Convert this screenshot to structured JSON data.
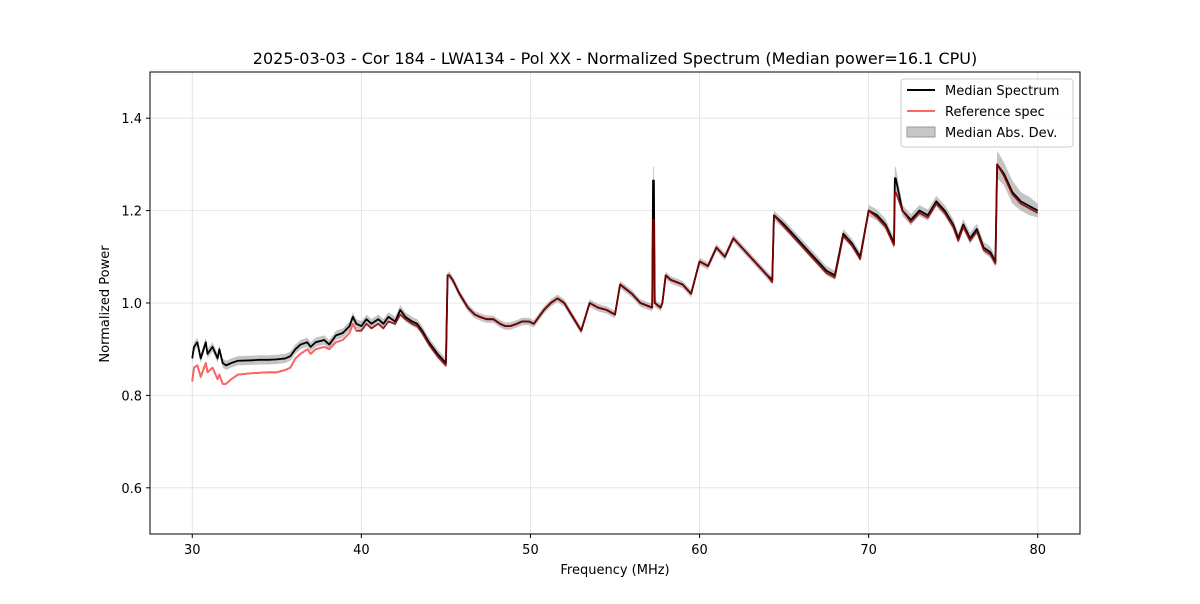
{
  "chart_data": {
    "type": "line",
    "title": "2025-03-03 - Cor 184 - LWA134 - Pol XX - Normalized Spectrum (Median power=16.1 CPU)",
    "xlabel": "Frequency (MHz)",
    "ylabel": "Normalized Power",
    "xlim": [
      27.5,
      82.5
    ],
    "ylim": [
      0.5,
      1.5
    ],
    "xticks": [
      30,
      40,
      50,
      60,
      70,
      80
    ],
    "yticks": [
      0.6,
      0.8,
      1.0,
      1.2,
      1.4
    ],
    "xtick_labels": [
      "30",
      "40",
      "50",
      "60",
      "70",
      "80"
    ],
    "ytick_labels": [
      "0.6",
      "0.8",
      "1.0",
      "1.2",
      "1.4"
    ],
    "grid": true,
    "legend_position": "top-right",
    "legend": [
      "Median Spectrum",
      "Reference spec",
      "Median Abs. Dev."
    ],
    "colors": {
      "median": "#000000",
      "reference": "#ff6666",
      "reference_overlap": "#8b0000",
      "mad_band": "#b0b0b0",
      "grid": "#e0e0e0"
    },
    "series": [
      {
        "name": "Median Spectrum",
        "x": [
          30.0,
          30.1,
          30.3,
          30.5,
          30.8,
          30.9,
          31.2,
          31.5,
          31.6,
          31.8,
          32.0,
          32.3,
          32.7,
          33.5,
          34.0,
          34.5,
          35.0,
          35.5,
          35.8,
          36.1,
          36.4,
          36.8,
          37.0,
          37.3,
          37.8,
          38.1,
          38.5,
          38.9,
          39.3,
          39.5,
          39.7,
          40.0,
          40.3,
          40.6,
          41.0,
          41.3,
          41.6,
          42.0,
          42.3,
          42.6,
          43.0,
          43.3,
          43.6,
          44.0,
          44.5,
          45.0,
          45.1,
          45.2,
          45.4,
          45.8,
          46.3,
          46.7,
          47.0,
          47.4,
          47.8,
          48.2,
          48.5,
          48.8,
          49.2,
          49.5,
          49.9,
          50.2,
          50.5,
          50.8,
          51.2,
          51.6,
          52.0,
          52.5,
          53.0,
          53.5,
          54.0,
          54.5,
          55.0,
          55.3,
          56.0,
          56.5,
          57.2,
          57.25,
          57.3,
          57.35,
          57.7,
          57.8,
          58.0,
          58.3,
          59.0,
          59.5,
          60.0,
          60.5,
          61.0,
          61.5,
          62.0,
          62.5,
          63.0,
          63.5,
          64.0,
          64.3,
          64.4,
          65.0,
          65.5,
          66.0,
          66.5,
          67.0,
          67.5,
          68.0,
          68.5,
          69.0,
          69.5,
          70.0,
          70.5,
          71.0,
          71.5,
          71.55,
          71.6,
          72.0,
          72.5,
          73.0,
          73.5,
          74.0,
          74.5,
          75.0,
          75.3,
          75.6,
          76.0,
          76.4,
          76.8,
          77.2,
          77.5,
          77.6,
          78.0,
          78.5,
          79.0,
          79.5,
          80.0
        ],
        "y": [
          0.88,
          0.905,
          0.915,
          0.88,
          0.915,
          0.89,
          0.905,
          0.88,
          0.9,
          0.87,
          0.865,
          0.87,
          0.875,
          0.876,
          0.877,
          0.877,
          0.878,
          0.88,
          0.885,
          0.9,
          0.91,
          0.915,
          0.905,
          0.915,
          0.92,
          0.91,
          0.93,
          0.935,
          0.95,
          0.97,
          0.955,
          0.95,
          0.965,
          0.955,
          0.965,
          0.955,
          0.97,
          0.96,
          0.985,
          0.97,
          0.96,
          0.955,
          0.94,
          0.915,
          0.89,
          0.87,
          1.06,
          1.06,
          1.05,
          1.02,
          0.99,
          0.975,
          0.97,
          0.965,
          0.965,
          0.955,
          0.95,
          0.95,
          0.955,
          0.96,
          0.96,
          0.955,
          0.97,
          0.985,
          1.0,
          1.01,
          1.0,
          0.97,
          0.94,
          1.0,
          0.99,
          0.985,
          0.975,
          1.04,
          1.02,
          1.0,
          0.99,
          1.265,
          1.265,
          1.0,
          0.99,
          1.0,
          1.06,
          1.05,
          1.04,
          1.02,
          1.09,
          1.08,
          1.12,
          1.1,
          1.14,
          1.12,
          1.1,
          1.08,
          1.06,
          1.05,
          1.19,
          1.17,
          1.15,
          1.13,
          1.11,
          1.09,
          1.07,
          1.06,
          1.15,
          1.13,
          1.1,
          1.2,
          1.19,
          1.17,
          1.13,
          1.27,
          1.27,
          1.2,
          1.18,
          1.2,
          1.19,
          1.22,
          1.2,
          1.17,
          1.14,
          1.17,
          1.14,
          1.16,
          1.12,
          1.11,
          1.09,
          1.3,
          1.28,
          1.24,
          1.22,
          1.21,
          1.2
        ]
      },
      {
        "name": "Reference spec",
        "x": [
          30.0,
          30.1,
          30.3,
          30.5,
          30.8,
          30.9,
          31.2,
          31.5,
          31.6,
          31.8,
          32.0,
          32.3,
          32.7,
          33.5,
          34.0,
          34.5,
          35.0,
          35.5,
          35.8,
          36.1,
          36.4,
          36.8,
          37.0,
          37.3,
          37.8,
          38.1,
          38.5,
          38.9,
          39.3,
          39.5,
          39.7,
          40.0,
          40.3,
          40.6,
          41.0,
          41.3,
          41.6,
          42.0,
          42.3,
          42.6,
          43.0,
          43.3,
          43.6,
          44.0,
          44.5,
          45.0,
          45.1,
          45.2,
          45.4,
          45.8,
          46.3,
          46.7,
          47.0,
          47.4,
          47.8,
          48.2,
          48.5,
          48.8,
          49.2,
          49.5,
          49.9,
          50.2,
          50.5,
          50.8,
          51.2,
          51.6,
          52.0,
          52.5,
          53.0,
          53.5,
          54.0,
          54.5,
          55.0,
          55.3,
          56.0,
          56.5,
          57.2,
          57.25,
          57.3,
          57.35,
          57.7,
          57.8,
          58.0,
          58.3,
          59.0,
          59.5,
          60.0,
          60.5,
          61.0,
          61.5,
          62.0,
          62.5,
          63.0,
          63.5,
          64.0,
          64.3,
          64.4,
          65.0,
          65.5,
          66.0,
          66.5,
          67.0,
          67.5,
          68.0,
          68.5,
          69.0,
          69.5,
          70.0,
          70.5,
          71.0,
          71.5,
          71.55,
          71.6,
          72.0,
          72.5,
          73.0,
          73.5,
          74.0,
          74.5,
          75.0,
          75.3,
          75.6,
          76.0,
          76.4,
          76.8,
          77.2,
          77.5,
          77.6,
          78.0,
          78.5,
          79.0,
          79.5,
          80.0
        ],
        "y": [
          0.83,
          0.86,
          0.865,
          0.84,
          0.87,
          0.85,
          0.86,
          0.835,
          0.845,
          0.825,
          0.825,
          0.835,
          0.845,
          0.848,
          0.849,
          0.85,
          0.85,
          0.855,
          0.86,
          0.88,
          0.89,
          0.9,
          0.89,
          0.9,
          0.905,
          0.9,
          0.915,
          0.92,
          0.935,
          0.955,
          0.94,
          0.94,
          0.955,
          0.945,
          0.955,
          0.945,
          0.96,
          0.955,
          0.975,
          0.965,
          0.955,
          0.95,
          0.935,
          0.91,
          0.885,
          0.865,
          1.06,
          1.06,
          1.05,
          1.02,
          0.99,
          0.975,
          0.97,
          0.965,
          0.965,
          0.955,
          0.95,
          0.95,
          0.955,
          0.96,
          0.96,
          0.955,
          0.97,
          0.985,
          1.0,
          1.01,
          1.0,
          0.97,
          0.94,
          1.0,
          0.99,
          0.985,
          0.975,
          1.04,
          1.02,
          1.0,
          0.99,
          1.18,
          1.18,
          1.0,
          0.99,
          1.0,
          1.06,
          1.05,
          1.04,
          1.02,
          1.09,
          1.08,
          1.12,
          1.1,
          1.14,
          1.12,
          1.1,
          1.08,
          1.06,
          1.045,
          1.19,
          1.165,
          1.145,
          1.125,
          1.105,
          1.085,
          1.065,
          1.055,
          1.145,
          1.125,
          1.095,
          1.2,
          1.185,
          1.165,
          1.125,
          1.24,
          1.24,
          1.2,
          1.175,
          1.195,
          1.185,
          1.215,
          1.195,
          1.165,
          1.135,
          1.165,
          1.135,
          1.155,
          1.115,
          1.105,
          1.085,
          1.3,
          1.275,
          1.235,
          1.215,
          1.205,
          1.195
        ]
      },
      {
        "name": "Median Abs. Dev.",
        "x": [
          30.0,
          30.1,
          30.3,
          30.5,
          30.8,
          30.9,
          31.2,
          31.5,
          31.6,
          31.8,
          32.0,
          32.3,
          32.7,
          33.5,
          34.0,
          34.5,
          35.0,
          35.5,
          35.8,
          36.1,
          36.4,
          36.8,
          37.0,
          37.3,
          37.8,
          38.1,
          38.5,
          38.9,
          39.3,
          39.5,
          39.7,
          40.0,
          40.3,
          40.6,
          41.0,
          41.3,
          41.6,
          42.0,
          42.3,
          42.6,
          43.0,
          43.3,
          43.6,
          44.0,
          44.5,
          45.0,
          45.1,
          45.2,
          45.4,
          45.8,
          46.3,
          46.7,
          47.0,
          47.4,
          47.8,
          48.2,
          48.5,
          48.8,
          49.2,
          49.5,
          49.9,
          50.2,
          50.5,
          50.8,
          51.2,
          51.6,
          52.0,
          52.5,
          53.0,
          53.5,
          54.0,
          54.5,
          55.0,
          55.3,
          56.0,
          56.5,
          57.2,
          57.25,
          57.3,
          57.35,
          57.7,
          57.8,
          58.0,
          58.3,
          59.0,
          59.5,
          60.0,
          60.5,
          61.0,
          61.5,
          62.0,
          62.5,
          63.0,
          63.5,
          64.0,
          64.3,
          64.4,
          65.0,
          65.5,
          66.0,
          66.5,
          67.0,
          67.5,
          68.0,
          68.5,
          69.0,
          69.5,
          70.0,
          70.5,
          71.0,
          71.5,
          71.55,
          71.6,
          72.0,
          72.5,
          73.0,
          73.5,
          74.0,
          74.5,
          75.0,
          75.3,
          75.6,
          76.0,
          76.4,
          76.8,
          77.2,
          77.5,
          77.6,
          78.0,
          78.5,
          79.0,
          79.5,
          80.0
        ],
        "upper": [
          0.89,
          0.915,
          0.925,
          0.89,
          0.925,
          0.9,
          0.915,
          0.89,
          0.91,
          0.88,
          0.875,
          0.88,
          0.885,
          0.886,
          0.887,
          0.887,
          0.888,
          0.89,
          0.895,
          0.91,
          0.92,
          0.925,
          0.915,
          0.925,
          0.93,
          0.92,
          0.94,
          0.945,
          0.96,
          0.98,
          0.965,
          0.96,
          0.975,
          0.965,
          0.975,
          0.965,
          0.98,
          0.97,
          0.995,
          0.98,
          0.97,
          0.965,
          0.95,
          0.925,
          0.9,
          0.88,
          1.068,
          1.068,
          1.058,
          1.028,
          0.998,
          0.983,
          0.978,
          0.973,
          0.973,
          0.963,
          0.958,
          0.958,
          0.963,
          0.968,
          0.968,
          0.963,
          0.978,
          0.993,
          1.008,
          1.018,
          1.008,
          0.978,
          0.948,
          1.008,
          0.998,
          0.993,
          0.983,
          1.048,
          1.028,
          1.008,
          0.998,
          1.295,
          1.295,
          1.008,
          0.998,
          1.008,
          1.068,
          1.058,
          1.048,
          1.028,
          1.098,
          1.088,
          1.128,
          1.108,
          1.148,
          1.128,
          1.108,
          1.088,
          1.068,
          1.058,
          1.2,
          1.18,
          1.16,
          1.14,
          1.12,
          1.1,
          1.08,
          1.07,
          1.16,
          1.14,
          1.11,
          1.212,
          1.202,
          1.182,
          1.142,
          1.295,
          1.295,
          1.212,
          1.192,
          1.212,
          1.202,
          1.232,
          1.212,
          1.182,
          1.152,
          1.182,
          1.152,
          1.172,
          1.132,
          1.122,
          1.102,
          1.33,
          1.305,
          1.265,
          1.24,
          1.23,
          1.215
        ],
        "lower": [
          0.87,
          0.895,
          0.905,
          0.87,
          0.905,
          0.88,
          0.895,
          0.87,
          0.89,
          0.86,
          0.855,
          0.86,
          0.865,
          0.866,
          0.867,
          0.867,
          0.868,
          0.87,
          0.875,
          0.89,
          0.9,
          0.905,
          0.895,
          0.905,
          0.91,
          0.9,
          0.92,
          0.925,
          0.94,
          0.96,
          0.945,
          0.94,
          0.955,
          0.945,
          0.955,
          0.945,
          0.96,
          0.95,
          0.975,
          0.96,
          0.95,
          0.945,
          0.93,
          0.905,
          0.88,
          0.86,
          1.052,
          1.052,
          1.042,
          1.012,
          0.982,
          0.967,
          0.962,
          0.957,
          0.957,
          0.947,
          0.942,
          0.942,
          0.947,
          0.952,
          0.952,
          0.947,
          0.962,
          0.977,
          0.992,
          1.002,
          0.992,
          0.962,
          0.932,
          0.992,
          0.982,
          0.977,
          0.967,
          1.032,
          1.012,
          0.992,
          0.982,
          1.24,
          1.24,
          0.992,
          0.982,
          0.992,
          1.052,
          1.042,
          1.032,
          1.012,
          1.082,
          1.072,
          1.112,
          1.092,
          1.132,
          1.112,
          1.092,
          1.072,
          1.052,
          1.04,
          1.18,
          1.16,
          1.14,
          1.12,
          1.1,
          1.08,
          1.06,
          1.05,
          1.14,
          1.12,
          1.09,
          1.188,
          1.178,
          1.158,
          1.118,
          1.245,
          1.245,
          1.188,
          1.168,
          1.188,
          1.178,
          1.208,
          1.188,
          1.158,
          1.128,
          1.158,
          1.128,
          1.148,
          1.108,
          1.098,
          1.078,
          1.27,
          1.255,
          1.215,
          1.2,
          1.19,
          1.185
        ]
      }
    ]
  }
}
